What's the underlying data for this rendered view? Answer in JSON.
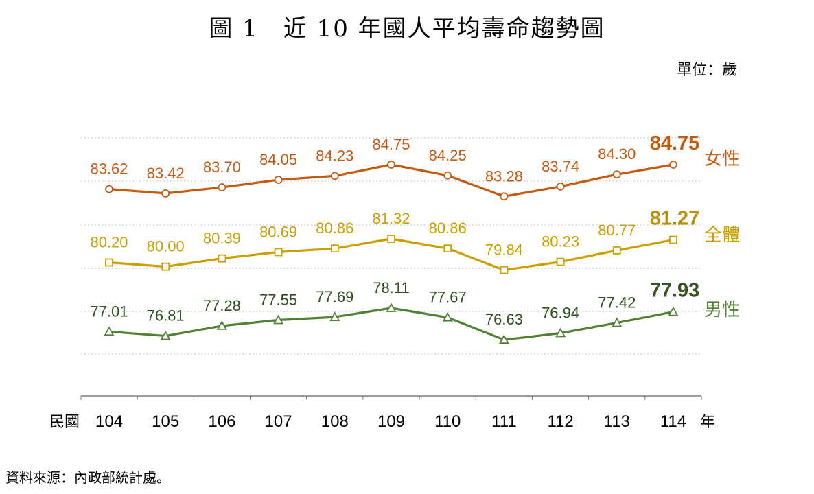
{
  "title": "圖 1　近 10 年國人平均壽命趨勢圖",
  "unit_label": "單位：歲",
  "source": "資料來源：內政部統計處。",
  "chart_data": {
    "type": "line",
    "title": "圖 1　近 10 年國人平均壽命趨勢圖",
    "x_prefix": "民國",
    "x_suffix": "年",
    "categories": [
      "104",
      "105",
      "106",
      "107",
      "108",
      "109",
      "110",
      "111",
      "112",
      "113",
      "114"
    ],
    "ylim": [
      68,
      88
    ],
    "grid": true,
    "series": [
      {
        "name": "女性",
        "color": "#C55A11",
        "marker": "circle",
        "values": [
          83.62,
          83.42,
          83.7,
          84.05,
          84.23,
          84.75,
          84.25,
          83.28,
          83.74,
          84.3,
          84.75
        ],
        "labels": [
          "83.62",
          "83.42",
          "83.70",
          "84.05",
          "84.23",
          "84.75",
          "84.25",
          "83.28",
          "83.74",
          "84.30",
          "84.75"
        ]
      },
      {
        "name": "全體",
        "color": "#C9A000",
        "marker": "square",
        "values": [
          80.2,
          80.0,
          80.39,
          80.69,
          80.86,
          81.32,
          80.86,
          79.84,
          80.23,
          80.77,
          81.27
        ],
        "labels": [
          "80.20",
          "80.00",
          "80.39",
          "80.69",
          "80.86",
          "81.32",
          "80.86",
          "79.84",
          "80.23",
          "80.77",
          "81.27"
        ]
      },
      {
        "name": "男性",
        "color": "#538135",
        "marker": "triangle",
        "values": [
          77.01,
          76.81,
          77.28,
          77.55,
          77.69,
          78.11,
          77.67,
          76.63,
          76.94,
          77.42,
          77.93
        ],
        "labels": [
          "77.01",
          "76.81",
          "77.28",
          "77.55",
          "77.69",
          "78.11",
          "77.67",
          "76.63",
          "76.94",
          "77.42",
          "77.93"
        ]
      }
    ]
  }
}
